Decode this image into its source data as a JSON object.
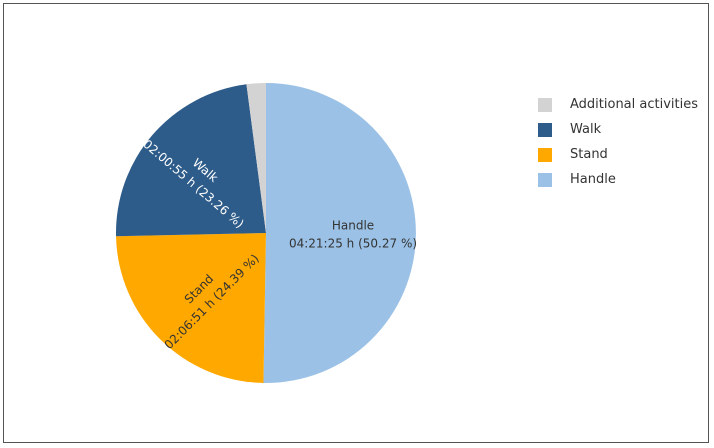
{
  "chart_data": {
    "type": "pie",
    "title": "",
    "start_angle_deg": 0,
    "direction": "clockwise",
    "slices": [
      {
        "name": "Handle",
        "value": 50.27,
        "label_name": "Handle",
        "label_detail": "04:21:25 h (50.27 %)",
        "color": "#9BC2E6",
        "text_color": "#333333"
      },
      {
        "name": "Stand",
        "value": 24.39,
        "label_name": "Stand",
        "label_detail": "02:06:51 h (24.39 %)",
        "color": "#FFA800",
        "text_color": "#333333"
      },
      {
        "name": "Walk",
        "value": 23.26,
        "label_name": "Walk",
        "label_detail": "02:00:55 h (23.26 %)",
        "color": "#2E5C8A",
        "text_color": "#ffffff"
      },
      {
        "name": "Additional activities",
        "value": 2.08,
        "label_name": "",
        "label_detail": "",
        "color": "#D3D3D3",
        "text_color": "#333333"
      }
    ],
    "legend": {
      "position": "right",
      "items": [
        {
          "label": "Additional activities",
          "color": "#D3D3D3"
        },
        {
          "label": "Walk",
          "color": "#2E5C8A"
        },
        {
          "label": "Stand",
          "color": "#FFA800"
        },
        {
          "label": "Handle",
          "color": "#9BC2E6"
        }
      ]
    }
  }
}
